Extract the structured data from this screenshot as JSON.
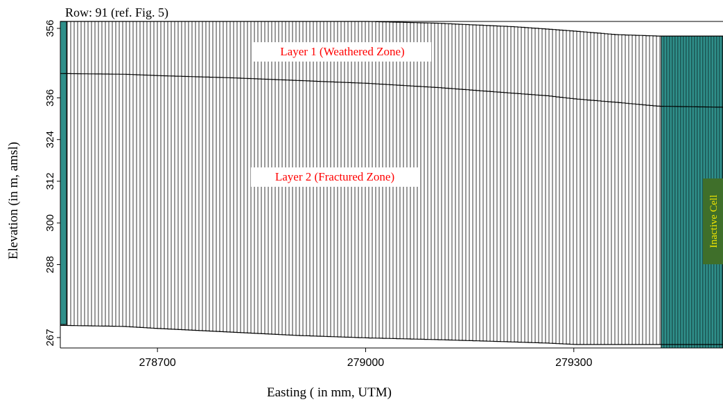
{
  "row_title": "Row: 91 (ref. Fig. 5)",
  "layer1_label": "Layer 1 (Weathered Zone)",
  "layer2_label": "Layer 2 (Fractured Zone)",
  "inactive_label": "Inactive Cell",
  "colors": {
    "grid": "#000000",
    "label_text": "#ff0000",
    "inactive_fill": "#3f6f2a",
    "inactive_text": "#f2e600",
    "inactive_cells": "#2f8f8a",
    "axis": "#000000"
  },
  "chart_data": {
    "type": "other",
    "xlabel": "Easting ( in mm, UTM)",
    "ylabel": "Elevation (in m, amsl)",
    "x_ticks": [
      278700,
      279000,
      279300
    ],
    "y_ticks": [
      267,
      288,
      300,
      312,
      324,
      336,
      356
    ],
    "x_range": [
      278560,
      279515
    ],
    "y_range": [
      264,
      358
    ],
    "top_surface": [
      [
        278560,
        358
      ],
      [
        279000,
        358
      ],
      [
        279100,
        357.5
      ],
      [
        279210,
        356.5
      ],
      [
        279260,
        355.8
      ],
      [
        279300,
        355.2
      ],
      [
        279360,
        354.2
      ],
      [
        279420,
        353.8
      ],
      [
        279515,
        353.8
      ]
    ],
    "layer_boundary": [
      [
        278560,
        343
      ],
      [
        278650,
        342.8
      ],
      [
        278700,
        342.4
      ],
      [
        278800,
        341.8
      ],
      [
        278900,
        341.0
      ],
      [
        279000,
        340.2
      ],
      [
        279100,
        339.0
      ],
      [
        279200,
        337.5
      ],
      [
        279260,
        336.6
      ],
      [
        279300,
        335.7
      ],
      [
        279360,
        334.7
      ],
      [
        279420,
        333.6
      ],
      [
        279515,
        333.3
      ]
    ],
    "bottom_surface": [
      [
        278560,
        270.5
      ],
      [
        278650,
        270.2
      ],
      [
        278700,
        269.6
      ],
      [
        278800,
        268.6
      ],
      [
        278900,
        267.6
      ],
      [
        279000,
        266.9
      ],
      [
        279100,
        266.4
      ],
      [
        279200,
        265.8
      ],
      [
        279260,
        265.4
      ],
      [
        279300,
        265.0
      ],
      [
        279360,
        265.0
      ],
      [
        279420,
        265.0
      ],
      [
        279515,
        265.0
      ]
    ],
    "inactive_columns_x": [
      278560,
      279426
    ],
    "annotations": [
      "Layer 1 (Weathered Zone)",
      "Layer 2 (Fractured Zone)",
      "Inactive Cell"
    ]
  }
}
